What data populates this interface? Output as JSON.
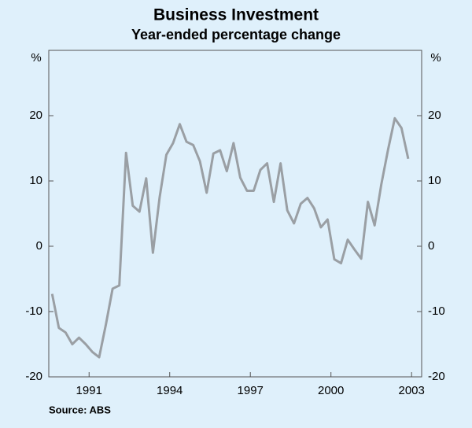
{
  "chart_data": {
    "type": "line",
    "title": "Business Investment",
    "subtitle": "Year-ended percentage change",
    "y_label": "%",
    "y2_label": "%",
    "source": "Source: ABS",
    "x": [
      1989.625,
      1989.875,
      1990.125,
      1990.375,
      1990.625,
      1990.875,
      1991.125,
      1991.375,
      1991.625,
      1991.875,
      1992.125,
      1992.375,
      1992.625,
      1992.875,
      1993.125,
      1993.375,
      1993.625,
      1993.875,
      1994.125,
      1994.375,
      1994.625,
      1994.875,
      1995.125,
      1995.375,
      1995.625,
      1995.875,
      1996.125,
      1996.375,
      1996.625,
      1996.875,
      1997.125,
      1997.375,
      1997.625,
      1997.875,
      1998.125,
      1998.375,
      1998.625,
      1998.875,
      1999.125,
      1999.375,
      1999.625,
      1999.875,
      2000.125,
      2000.375,
      2000.625,
      2000.875,
      2001.125,
      2001.375,
      2001.625,
      2001.875,
      2002.125,
      2002.375,
      2002.625,
      2002.875
    ],
    "series": [
      {
        "name": "Business investment",
        "color": "#9a9fa4",
        "values": [
          -7.3,
          -12.5,
          -13.2,
          -15,
          -14,
          -15,
          -16.2,
          -17,
          -12,
          -6.5,
          -6,
          14.3,
          6.2,
          5.3,
          10.4,
          -1,
          7.5,
          14,
          15.8,
          18.7,
          16,
          15.5,
          13,
          8.2,
          14.2,
          14.7,
          11.5,
          15.8,
          10.5,
          8.5,
          8.5,
          11.7,
          12.7,
          6.8,
          12.7,
          5.5,
          3.5,
          6.5,
          7.4,
          5.8,
          2.9,
          4.1,
          -2,
          -2.6,
          1,
          -0.5,
          -1.9,
          6.8,
          3.2,
          9.5,
          14.8,
          19.6,
          18.1,
          13.4
        ]
      }
    ],
    "xlim": [
      1989.5,
      2003.375
    ],
    "xticks": [
      1991,
      1994,
      1997,
      2000,
      2003
    ],
    "ylim": [
      -20,
      30
    ],
    "yticks": [
      -20,
      -10,
      0,
      10,
      20
    ],
    "y2lim": [
      -20,
      30
    ],
    "y2ticks": [
      -20,
      -10,
      0,
      10,
      20
    ],
    "grid": false
  }
}
